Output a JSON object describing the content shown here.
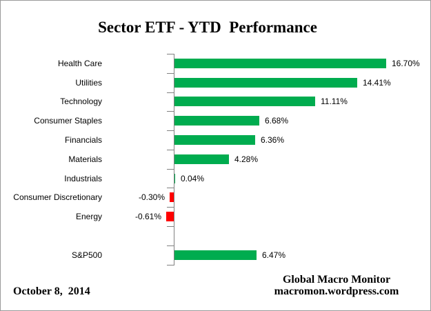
{
  "chart_data": {
    "type": "bar",
    "orientation": "horizontal",
    "title": "Sector ETF - YTD  Performance",
    "categories": [
      "Health Care",
      "Utilities",
      "Technology",
      "Consumer Staples",
      "Financials",
      "Materials",
      "Industrials",
      "Consumer Discretionary",
      "Energy",
      "",
      "S&P500"
    ],
    "values": [
      16.7,
      14.41,
      11.11,
      6.68,
      6.36,
      4.28,
      0.04,
      -0.3,
      -0.61,
      null,
      6.47
    ],
    "value_labels": [
      "16.70%",
      "14.41%",
      "11.11%",
      "6.68%",
      "6.36%",
      "4.28%",
      "0.04%",
      "-0.30%",
      "-0.61%",
      "",
      "6.47%"
    ],
    "unit": "percent",
    "xlim": [
      -2,
      18
    ],
    "grid": false,
    "legend": false,
    "colors": {
      "positive": "#00AC4F",
      "negative": "#FF0000",
      "axis": "#808080",
      "text": "#000000"
    }
  },
  "footer": {
    "date": "October 8,  2014",
    "source_line1": "Global Macro Monitor",
    "source_line2": "macromon.wordpress.com"
  }
}
